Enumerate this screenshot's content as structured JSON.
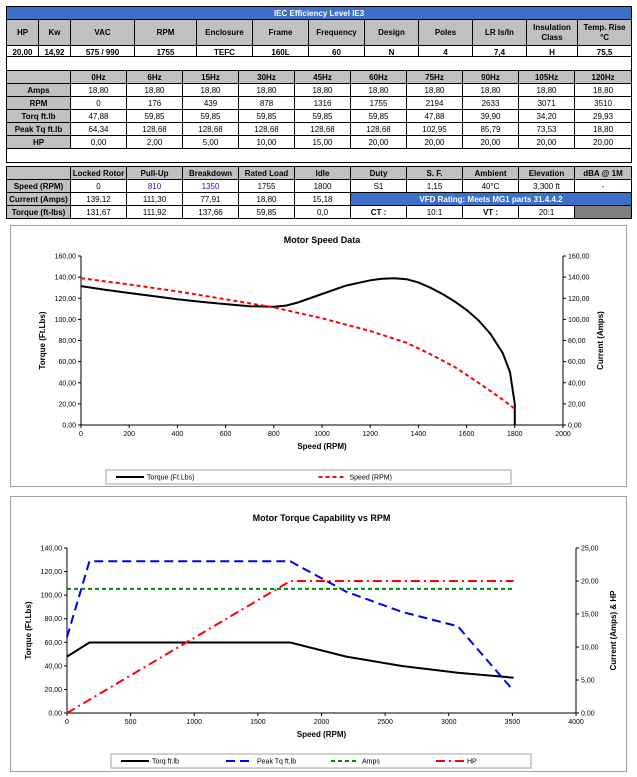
{
  "header": {
    "title": "IEC Efficiency Level IE3",
    "cols": [
      "HP",
      "Kw",
      "VAC",
      "RPM",
      "Enclosure",
      "Frame",
      "Frequency",
      "Design",
      "Poles",
      "LR Is/In",
      "Insulation Class",
      "Temp. Rise °C"
    ],
    "values": [
      "20,00",
      "14,92",
      "575 / 990",
      "1755",
      "TEFC",
      "160L",
      "60",
      "N",
      "4",
      "7,4",
      "H",
      "75,5"
    ]
  },
  "perf": {
    "freqs": [
      "0Hz",
      "6Hz",
      "15Hz",
      "30Hz",
      "45Hz",
      "60Hz",
      "75Hz",
      "90Hz",
      "105Hz",
      "120Hz"
    ],
    "rows": [
      {
        "label": "Amps",
        "values": [
          "18,80",
          "18,80",
          "18,80",
          "18,80",
          "18,80",
          "18,80",
          "18,80",
          "18,80",
          "18,80",
          "18,80"
        ]
      },
      {
        "label": "RPM",
        "values": [
          "0",
          "176",
          "439",
          "878",
          "1316",
          "1755",
          "2194",
          "2633",
          "3071",
          "3510"
        ]
      },
      {
        "label": "Torq ft.lb",
        "values": [
          "47,88",
          "59,85",
          "59,85",
          "59,85",
          "59,85",
          "59,85",
          "47,88",
          "39,90",
          "34,20",
          "29,93"
        ]
      },
      {
        "label": "Peak Tq ft.lb",
        "values": [
          "64,34",
          "128,68",
          "128,68",
          "128,68",
          "128,68",
          "128,68",
          "102,95",
          "85,79",
          "73,53",
          "18,80"
        ]
      },
      {
        "label": "HP",
        "values": [
          "0,00",
          "2,00",
          "5,00",
          "10,00",
          "15,00",
          "20,00",
          "20,00",
          "20,00",
          "20,00",
          "20,00"
        ]
      }
    ]
  },
  "load": {
    "cols": [
      "Locked Rotor",
      "Pull-Up",
      "Breakdown",
      "Rated Load",
      "Idle"
    ],
    "rows": [
      {
        "label": "Speed (RPM)",
        "values": [
          "0",
          "810",
          "1350",
          "1755",
          "1800"
        ]
      },
      {
        "label": "Current (Amps)",
        "values": [
          "139,12",
          "111,30",
          "77,91",
          "18,80",
          "15,18"
        ]
      },
      {
        "label": "Torque (ft-lbs)",
        "values": [
          "131,67",
          "111,92",
          "137,66",
          "59,85",
          "0,0"
        ]
      }
    ],
    "duty_cols": [
      "Duty",
      "S. F.",
      "Ambient",
      "Elevation",
      "dBA @ 1M"
    ],
    "duty_values": [
      "S1",
      "1,15",
      "40°C",
      "3,300 ft",
      "-"
    ],
    "vfd": "VFD Rating: Meets MG1 parts 31.4.4.2",
    "ct_label": "CT :",
    "ct_value": "10:1",
    "vt_label": "VT :",
    "vt_value": "20:1"
  },
  "chart_data": [
    {
      "type": "line",
      "title": "Motor Speed Data",
      "xlabel": "Speed (RPM)",
      "ylabel": "Torque (Ft.Lbs)",
      "y2label": "Current (Amps)",
      "xlim": [
        0,
        2000
      ],
      "ylim": [
        0,
        160
      ],
      "y2lim": [
        0,
        160
      ],
      "xticks": [
        "0",
        "200",
        "400",
        "600",
        "800",
        "1000",
        "1200",
        "1400",
        "1600",
        "1800",
        "2000"
      ],
      "yticks": [
        "0,00",
        "20,00",
        "40,00",
        "60,00",
        "80,00",
        "100,00",
        "120,00",
        "140,00",
        "160,00"
      ],
      "y2ticks": [
        "0,00",
        "20,00",
        "40,00",
        "60,00",
        "80,00",
        "100,00",
        "120,00",
        "140,00",
        "160,00"
      ],
      "legend_position": "bottom",
      "series": [
        {
          "name": "Torque (Ft.Lbs)",
          "color": "#000000",
          "dash": "solid",
          "x": [
            0,
            100,
            200,
            300,
            400,
            500,
            600,
            700,
            800,
            850,
            900,
            1000,
            1100,
            1200,
            1250,
            1300,
            1350,
            1400,
            1450,
            1500,
            1550,
            1600,
            1650,
            1700,
            1750,
            1780,
            1800,
            1800
          ],
          "y": [
            131.5,
            128,
            125,
            122,
            119,
            116.5,
            114.5,
            112.5,
            111.9,
            113,
            116,
            124,
            132,
            137,
            138.5,
            139,
            138,
            135,
            130,
            124,
            117,
            109,
            99,
            86,
            68,
            50,
            20,
            0
          ]
        },
        {
          "name": "Speed (RPM)",
          "color": "#ff0000",
          "dash": "dashed",
          "x": [
            0,
            200,
            400,
            600,
            800,
            1000,
            1200,
            1350,
            1450,
            1550,
            1650,
            1700,
            1750,
            1790,
            1800
          ],
          "y": [
            139,
            133,
            126.5,
            119,
            111.3,
            101,
            89,
            77.9,
            67,
            55,
            40,
            32,
            24,
            17,
            15.2
          ]
        }
      ]
    },
    {
      "type": "line",
      "title": "Motor Torque Capability vs RPM",
      "xlabel": "Speed (RPM)",
      "ylabel": "Torque (Ft.Lbs)",
      "y2label": "Current (Amps) & HP",
      "xlim": [
        0,
        4000
      ],
      "ylim": [
        0,
        140
      ],
      "y2lim": [
        0,
        25
      ],
      "xticks": [
        "0",
        "500",
        "1000",
        "1500",
        "2000",
        "2500",
        "3000",
        "3500",
        "4000"
      ],
      "yticks": [
        "0,00",
        "20,00",
        "40,00",
        "60,00",
        "80,00",
        "100,00",
        "120,00",
        "140,00"
      ],
      "y2ticks": [
        "0,00",
        "5,00",
        "10,00",
        "15,00",
        "20,00",
        "25,00"
      ],
      "legend_position": "bottom",
      "series": [
        {
          "name": "Torq ft.lb",
          "color": "#000000",
          "dash": "solid",
          "axis": "left",
          "x": [
            0,
            176,
            439,
            878,
            1316,
            1755,
            2194,
            2633,
            3071,
            3510
          ],
          "y": [
            47.88,
            59.85,
            59.85,
            59.85,
            59.85,
            59.85,
            47.88,
            39.9,
            34.2,
            29.93
          ]
        },
        {
          "name": "Peak Tq ft.lb",
          "color": "#0000ee",
          "dash": "longdash",
          "axis": "left",
          "x": [
            0,
            176,
            439,
            878,
            1316,
            1755,
            2194,
            2633,
            3071,
            3510
          ],
          "y": [
            64.34,
            128.68,
            128.68,
            128.68,
            128.68,
            128.68,
            102.95,
            85.79,
            73.53,
            18.8
          ]
        },
        {
          "name": "Amps",
          "color": "#008800",
          "dash": "dashed",
          "axis": "right",
          "x": [
            0,
            176,
            439,
            878,
            1316,
            1755,
            2194,
            2633,
            3071,
            3510
          ],
          "y": [
            18.8,
            18.8,
            18.8,
            18.8,
            18.8,
            18.8,
            18.8,
            18.8,
            18.8,
            18.8
          ]
        },
        {
          "name": "HP",
          "color": "#ff0000",
          "dash": "dashdot",
          "axis": "right",
          "x": [
            0,
            176,
            439,
            878,
            1316,
            1755,
            2194,
            2633,
            3071,
            3510
          ],
          "y": [
            0,
            2,
            5,
            10,
            15,
            20,
            20,
            20,
            20,
            20
          ]
        }
      ]
    }
  ]
}
